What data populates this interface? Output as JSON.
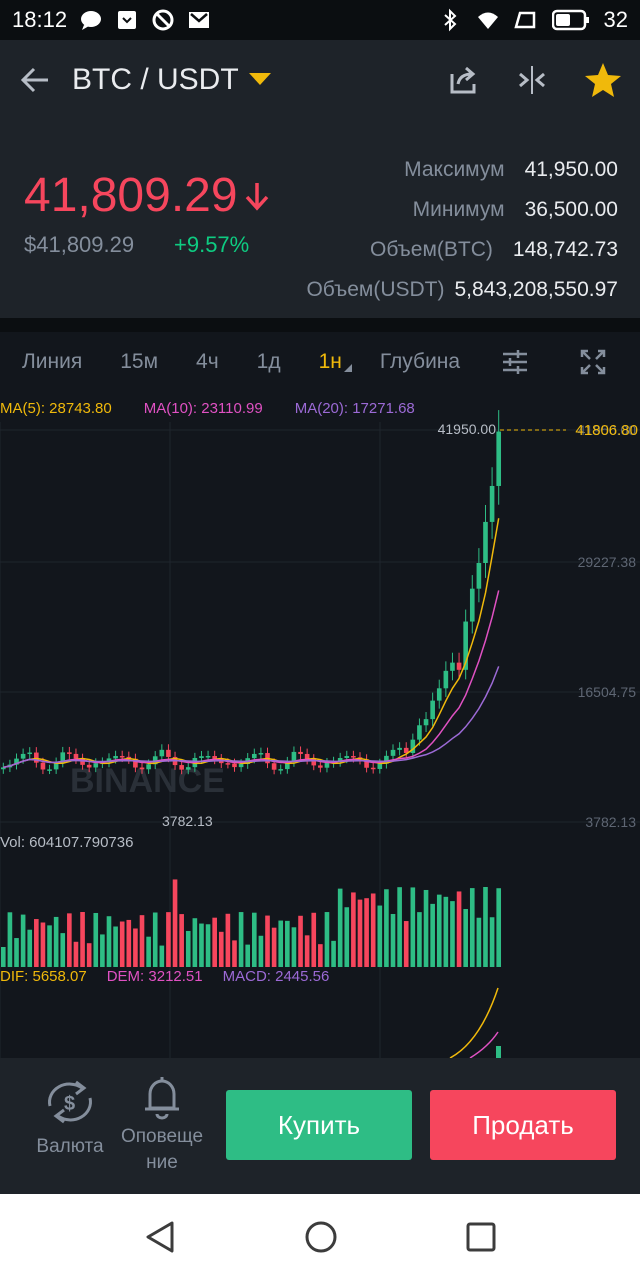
{
  "status": {
    "time": "18:12",
    "battery": "32"
  },
  "header": {
    "pair": "BTC / USDT"
  },
  "ticker": {
    "price": "41,809.29",
    "price_fiat": "$41,809.29",
    "change": "+9.57%",
    "stats": [
      {
        "label": "Максимум",
        "value": "41,950.00"
      },
      {
        "label": "Минимум",
        "value": "36,500.00"
      },
      {
        "label": "Объем(BTC)",
        "value": "148,742.73"
      },
      {
        "label": "Объем(USDT)",
        "value": "5,843,208,550.97"
      }
    ]
  },
  "tabs": {
    "line": "Линия",
    "m15": "15м",
    "h4": "4ч",
    "d1": "1д",
    "w1": "1н",
    "depth": "Глубина"
  },
  "chart": {
    "ma5": "MA(5): 28743.80",
    "ma10": "MA(10): 23110.99",
    "ma20": "MA(20): 17271.68",
    "high_label": "41950.00",
    "current_label": "41806.80",
    "axis": [
      "41950.00",
      "29227.38",
      "16504.75",
      "3782.13"
    ],
    "low_label": "3782.13",
    "vol": "Vol: 604107.790736",
    "dif": "DIF: 5658.07",
    "dem": "DEM: 3212.51",
    "macd": "MACD: 2445.56",
    "watermark": "BINANCE"
  },
  "bottom": {
    "currency": "Валюта",
    "alerts_l1": "Оповеще",
    "alerts_l2": "ние",
    "buy": "Купить",
    "sell": "Продать"
  },
  "colors": {
    "up": "#2ebd85",
    "down": "#f6465d",
    "accent": "#f0b90b"
  }
}
